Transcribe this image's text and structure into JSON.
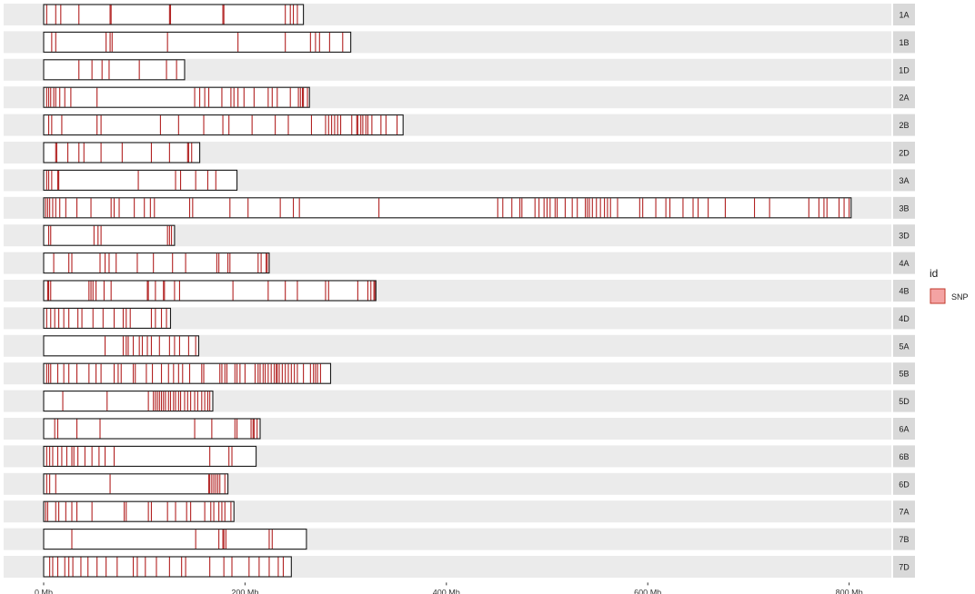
{
  "chart_data": {
    "type": "chromosome-map",
    "x_unit": "Mb",
    "xlim": [
      0,
      800
    ],
    "x_ticks": [
      {
        "value": 0,
        "label": "0 Mb"
      },
      {
        "value": 200,
        "label": "200 Mb"
      },
      {
        "value": 400,
        "label": "400 Mb"
      },
      {
        "value": 600,
        "label": "600 Mb"
      },
      {
        "value": 800,
        "label": "800 Mb"
      }
    ],
    "legend": {
      "title": "id",
      "entries": [
        {
          "label": "SNP",
          "color": "#f4a3a3"
        }
      ],
      "placement": "right"
    },
    "colors": {
      "snp": "#b22222",
      "panel": "#ebebeb",
      "strip": "#d9d9d9",
      "outline": "#1a1a1a"
    },
    "grid": false,
    "chromosomes": [
      {
        "name": "1A",
        "length": 258,
        "snps": [
          3,
          12,
          17,
          35,
          66,
          67,
          125,
          126,
          178,
          179,
          240,
          245,
          248,
          252
        ]
      },
      {
        "name": "1B",
        "length": 305,
        "snps": [
          8,
          12,
          62,
          66,
          68,
          123,
          193,
          240,
          265,
          270,
          274,
          284,
          297
        ]
      },
      {
        "name": "1D",
        "length": 140,
        "snps": [
          35,
          48,
          58,
          65,
          95,
          122,
          132
        ]
      },
      {
        "name": "2A",
        "length": 264,
        "snps": [
          3,
          5,
          7,
          10,
          12,
          16,
          21,
          27,
          53,
          150,
          155,
          160,
          164,
          177,
          186,
          189,
          193,
          199,
          209,
          223,
          227,
          232,
          245,
          253,
          255,
          257,
          258,
          262
        ]
      },
      {
        "name": "2B",
        "length": 357,
        "snps": [
          5,
          8,
          18,
          53,
          57,
          116,
          134,
          159,
          178,
          184,
          207,
          230,
          243,
          266,
          280,
          283,
          286,
          289,
          292,
          295,
          306,
          311,
          312,
          315,
          317,
          320,
          322,
          326,
          335,
          340,
          351
        ]
      },
      {
        "name": "2D",
        "length": 155,
        "snps": [
          12,
          13,
          24,
          35,
          40,
          57,
          78,
          107,
          125,
          143,
          144,
          147
        ]
      },
      {
        "name": "3A",
        "length": 192,
        "snps": [
          3,
          5,
          8,
          14,
          15,
          94,
          131,
          136,
          151,
          163,
          171
        ]
      },
      {
        "name": "3B",
        "length": 802,
        "snps": [
          2,
          4,
          6,
          9,
          12,
          16,
          22,
          33,
          47,
          67,
          70,
          75,
          90,
          100,
          106,
          110,
          145,
          148,
          185,
          203,
          235,
          248,
          254,
          333,
          451,
          456,
          465,
          473,
          475,
          488,
          492,
          497,
          500,
          503,
          508,
          510,
          518,
          525,
          530,
          538,
          540,
          542,
          545,
          549,
          553,
          557,
          560,
          563,
          570,
          592,
          595,
          608,
          618,
          622,
          635,
          645,
          650,
          660,
          677,
          706,
          721,
          760,
          770,
          775,
          778,
          790,
          795,
          800
        ]
      },
      {
        "name": "3D",
        "length": 130,
        "snps": [
          5,
          7,
          50,
          54,
          57,
          123,
          125,
          127
        ]
      },
      {
        "name": "4A",
        "length": 224,
        "snps": [
          10,
          25,
          28,
          56,
          61,
          65,
          72,
          93,
          109,
          128,
          141,
          172,
          174,
          183,
          185,
          213,
          216,
          221,
          222,
          224
        ]
      },
      {
        "name": "4B",
        "length": 330,
        "snps": [
          4,
          5,
          7,
          45,
          47,
          49,
          52,
          60,
          67,
          103,
          104,
          111,
          119,
          120,
          130,
          135,
          188,
          223,
          240,
          252,
          280,
          283,
          312,
          322,
          325,
          328,
          329
        ]
      },
      {
        "name": "4D",
        "length": 126,
        "snps": [
          3,
          7,
          11,
          15,
          20,
          25,
          34,
          38,
          49,
          59,
          70,
          79,
          82,
          86,
          107,
          111,
          117,
          122
        ]
      },
      {
        "name": "5A",
        "length": 154,
        "snps": [
          61,
          79,
          82,
          84,
          89,
          95,
          98,
          103,
          107,
          115,
          125,
          130,
          135,
          144,
          151
        ]
      },
      {
        "name": "5B",
        "length": 285,
        "snps": [
          3,
          5,
          7,
          14,
          20,
          25,
          33,
          45,
          52,
          57,
          70,
          74,
          77,
          89,
          91,
          102,
          108,
          117,
          124,
          129,
          134,
          138,
          145,
          157,
          159,
          175,
          177,
          180,
          182,
          190,
          192,
          195,
          200,
          210,
          213,
          215,
          218,
          220,
          223,
          226,
          229,
          231,
          232,
          234,
          237,
          240,
          243,
          246,
          249,
          252,
          258,
          265,
          268,
          270,
          272,
          275
        ]
      },
      {
        "name": "5D",
        "length": 168,
        "snps": [
          19,
          63,
          104,
          109,
          111,
          113,
          115,
          117,
          119,
          121,
          124,
          126,
          129,
          131,
          134,
          136,
          140,
          143,
          146,
          150,
          153,
          157,
          160,
          163,
          165
        ]
      },
      {
        "name": "6A",
        "length": 215,
        "snps": [
          11,
          14,
          33,
          56,
          150,
          167,
          190,
          192,
          206,
          208,
          209,
          212
        ]
      },
      {
        "name": "6B",
        "length": 211,
        "snps": [
          3,
          6,
          9,
          14,
          18,
          23,
          28,
          30,
          34,
          41,
          48,
          55,
          61,
          70,
          165,
          184,
          187
        ]
      },
      {
        "name": "6D",
        "length": 183,
        "snps": [
          3,
          6,
          12,
          66,
          164,
          165,
          167,
          169,
          171,
          173,
          175,
          180
        ]
      },
      {
        "name": "7A",
        "length": 189,
        "snps": [
          2,
          4,
          12,
          15,
          22,
          28,
          33,
          48,
          80,
          82,
          104,
          107,
          123,
          131,
          142,
          146,
          160,
          166,
          169,
          174,
          177,
          180,
          186
        ]
      },
      {
        "name": "7B",
        "length": 261,
        "snps": [
          28,
          151,
          174,
          178,
          179,
          181,
          224,
          227
        ]
      },
      {
        "name": "7D",
        "length": 246,
        "snps": [
          6,
          9,
          14,
          21,
          25,
          29,
          37,
          44,
          53,
          62,
          73,
          89,
          93,
          101,
          112,
          125,
          137,
          141,
          165,
          179,
          187,
          204,
          214,
          224,
          233,
          238
        ]
      }
    ]
  }
}
